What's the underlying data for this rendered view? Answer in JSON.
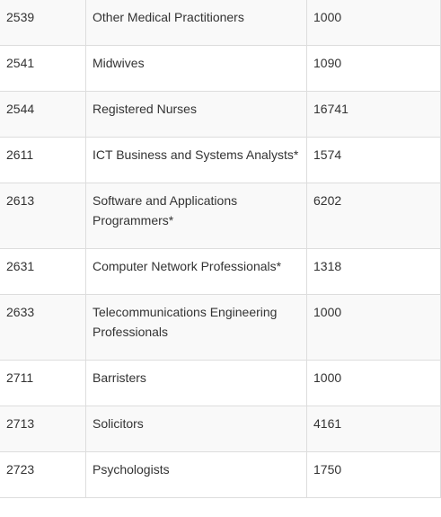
{
  "table": {
    "rows": [
      [
        "2539",
        "Other Medical Practitioners",
        "1000"
      ],
      [
        "2541",
        "Midwives",
        "1090"
      ],
      [
        "2544",
        "Registered Nurses",
        "16741"
      ],
      [
        "2611",
        "ICT Business and Systems Analysts*",
        "1574"
      ],
      [
        "2613",
        "Software and Applications Programmers*",
        "6202"
      ],
      [
        "2631",
        "Computer Network Professionals*",
        "1318"
      ],
      [
        "2633",
        "Telecommunications Engineering Professionals",
        "1000"
      ],
      [
        "2711",
        "Barristers",
        "1000"
      ],
      [
        "2713",
        "Solicitors",
        "4161"
      ],
      [
        "2723",
        "Psychologists",
        "1750"
      ]
    ]
  }
}
